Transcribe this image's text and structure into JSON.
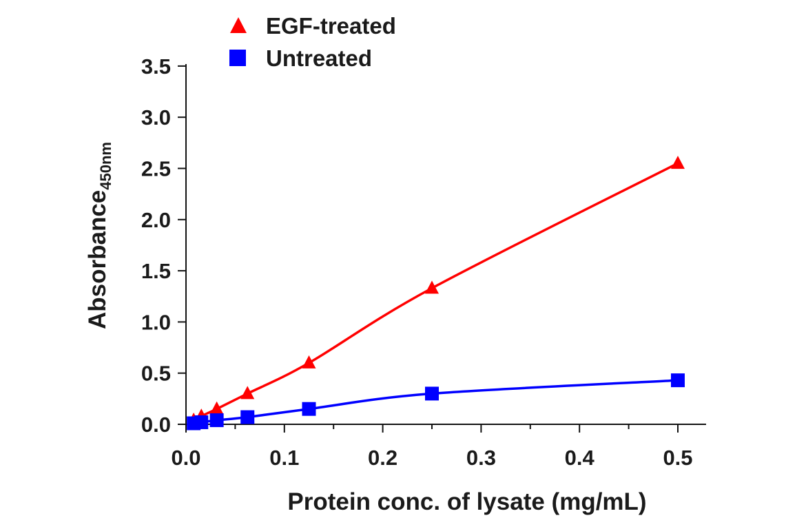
{
  "chart_data": {
    "type": "line",
    "title": "",
    "xlabel": "Protein conc. of lysate (mg/mL)",
    "ylabel_main": "Absorbance",
    "ylabel_sub": "450nm",
    "xlim": [
      0,
      0.52
    ],
    "ylim": [
      0,
      3.5
    ],
    "x_ticks": [
      "0.0",
      "0.1",
      "0.2",
      "0.3",
      "0.4",
      "0.5"
    ],
    "y_ticks": [
      "0.0",
      "0.5",
      "1.0",
      "1.5",
      "2.0",
      "2.5",
      "3.0",
      "3.5"
    ],
    "legend_position": "top-left",
    "series": [
      {
        "name": "EGF-treated",
        "marker": "triangle",
        "color": "#ff0000",
        "x": [
          0.0078,
          0.0156,
          0.03125,
          0.0625,
          0.125,
          0.25,
          0.5
        ],
        "y": [
          0.04,
          0.08,
          0.15,
          0.3,
          0.6,
          1.33,
          2.55
        ]
      },
      {
        "name": "Untreated",
        "marker": "square",
        "color": "#0000ff",
        "x": [
          0.0078,
          0.0156,
          0.03125,
          0.0625,
          0.125,
          0.25,
          0.5
        ],
        "y": [
          0.01,
          0.02,
          0.04,
          0.07,
          0.15,
          0.3,
          0.43
        ]
      }
    ]
  }
}
